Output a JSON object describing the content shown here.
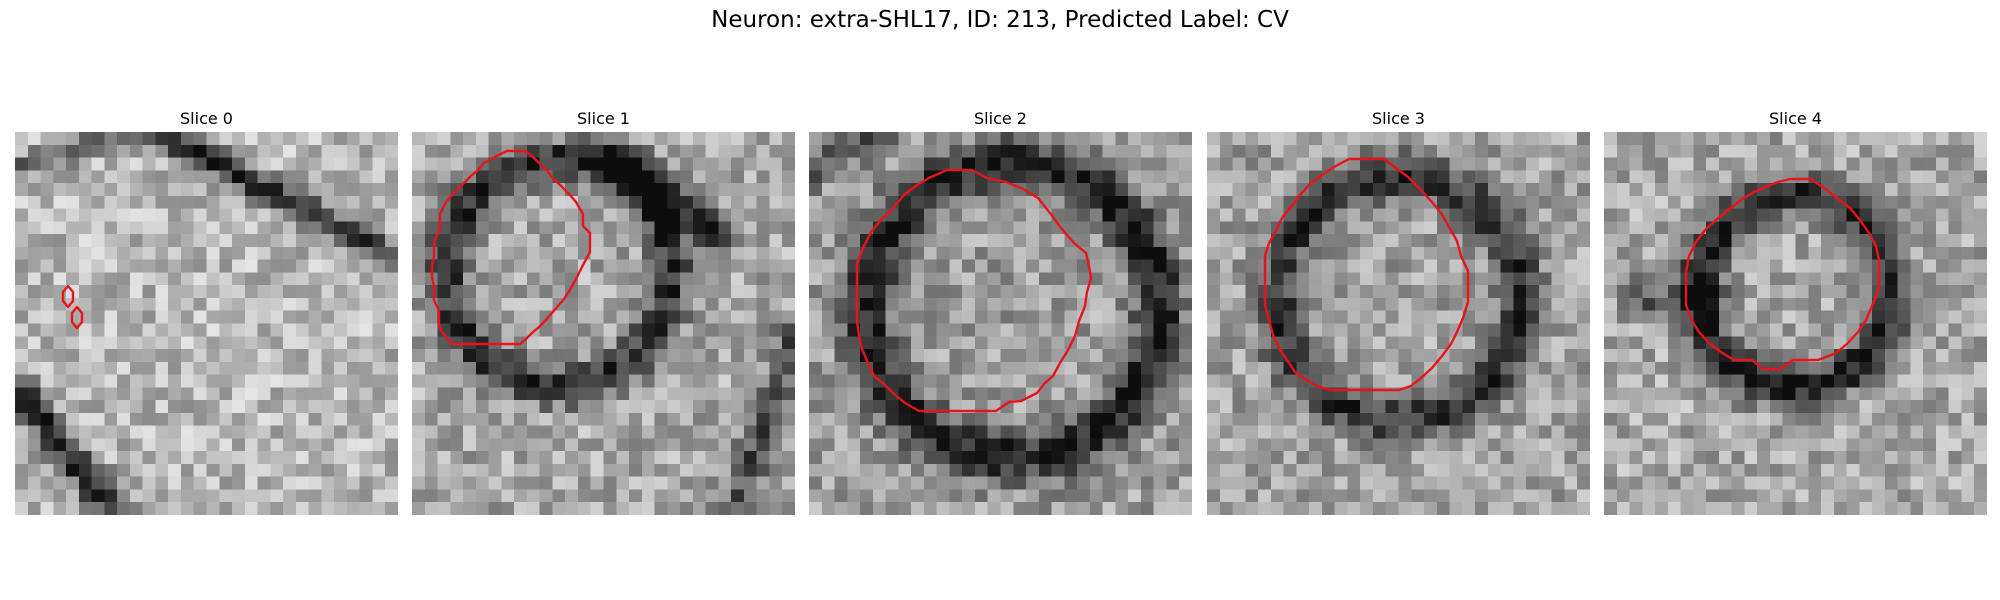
{
  "title": "Neuron: extra-SHL17, ID: 213, Predicted Label: CV",
  "panels": [
    {
      "label": "Slice 0"
    },
    {
      "label": "Slice 1"
    },
    {
      "label": "Slice 2"
    },
    {
      "label": "Slice 3"
    },
    {
      "label": "Slice 4"
    }
  ],
  "contour_color": "#e8141a",
  "colormap": "gray"
}
